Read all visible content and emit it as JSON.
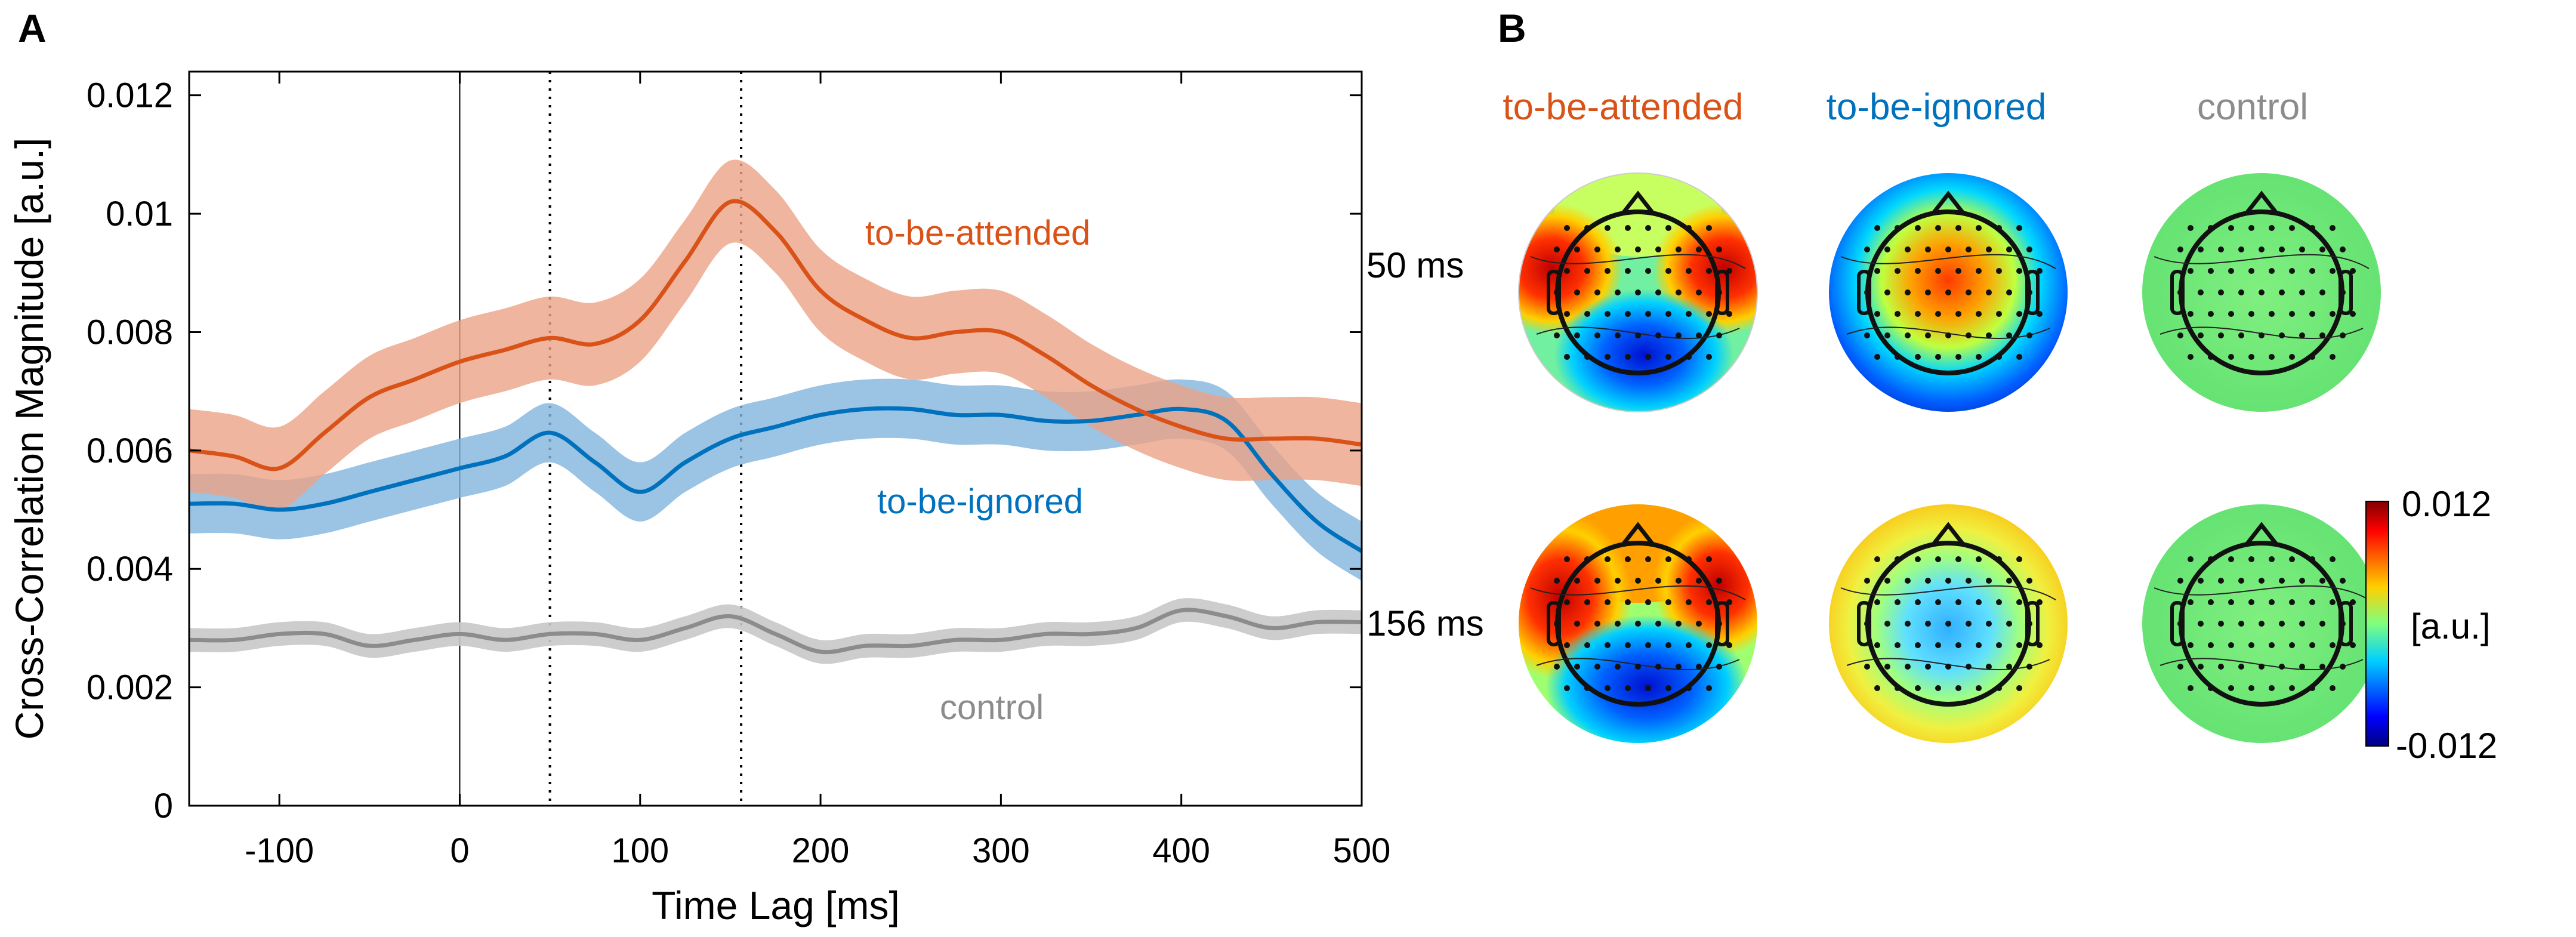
{
  "panel_a_label": "A",
  "panel_b_label": "B",
  "colors": {
    "attended": "#D95319",
    "attended_fill": "#EBA286",
    "ignored": "#0072BD",
    "ignored_fill": "#82B4DD",
    "control": "#8C8C8C",
    "control_fill": "#C8C8C8"
  },
  "chart_data": {
    "type": "line",
    "title": "",
    "xlabel": "Time Lag [ms]",
    "ylabel": "Cross-Correlation Magnitude [a.u.]",
    "xlim": [
      -150,
      500
    ],
    "ylim": [
      0,
      0.0124
    ],
    "xticks": [
      -100,
      0,
      100,
      200,
      300,
      400,
      500
    ],
    "xtick_labels": [
      "-100",
      "0",
      "100",
      "200",
      "300",
      "400",
      "500"
    ],
    "yticks": [
      0,
      0.002,
      0.004,
      0.006,
      0.008,
      0.01,
      0.012
    ],
    "ytick_labels": [
      "0",
      "0.002",
      "0.004",
      "0.006",
      "0.008",
      "0.01",
      "0.012"
    ],
    "vlines": [
      {
        "x": 0,
        "style": "solid"
      },
      {
        "x": 50,
        "style": "dotted"
      },
      {
        "x": 156,
        "style": "dotted"
      }
    ],
    "x": [
      -150,
      -125,
      -100,
      -75,
      -50,
      -25,
      0,
      25,
      50,
      75,
      100,
      125,
      150,
      175,
      200,
      225,
      250,
      275,
      300,
      325,
      350,
      375,
      400,
      425,
      450,
      475,
      500
    ],
    "series": [
      {
        "name": "to-be-attended",
        "label": "to-be-attended",
        "values": [
          0.006,
          0.0059,
          0.0057,
          0.0063,
          0.0069,
          0.0072,
          0.0075,
          0.0077,
          0.0079,
          0.0078,
          0.0082,
          0.0092,
          0.0102,
          0.0097,
          0.0087,
          0.0082,
          0.0079,
          0.008,
          0.008,
          0.0076,
          0.0071,
          0.0067,
          0.0064,
          0.0062,
          0.0062,
          0.0062,
          0.0061
        ],
        "error": 0.0007
      },
      {
        "name": "to-be-ignored",
        "label": "to-be-ignored",
        "values": [
          0.0051,
          0.0051,
          0.005,
          0.0051,
          0.0053,
          0.0055,
          0.0057,
          0.0059,
          0.0063,
          0.0058,
          0.0053,
          0.0058,
          0.0062,
          0.0064,
          0.0066,
          0.0067,
          0.0067,
          0.0066,
          0.0066,
          0.0065,
          0.0065,
          0.0066,
          0.0067,
          0.0065,
          0.0056,
          0.0048,
          0.0043
        ],
        "error": 0.0005
      },
      {
        "name": "control",
        "label": "control",
        "values": [
          0.0028,
          0.0028,
          0.0029,
          0.0029,
          0.0027,
          0.0028,
          0.0029,
          0.0028,
          0.0029,
          0.0029,
          0.0028,
          0.003,
          0.0032,
          0.0029,
          0.0026,
          0.0027,
          0.0027,
          0.0028,
          0.0028,
          0.0029,
          0.0029,
          0.003,
          0.0033,
          0.0032,
          0.003,
          0.0031,
          0.0031
        ],
        "error": 0.0002
      }
    ]
  },
  "topomaps": {
    "columns": [
      "to-be-attended",
      "to-be-ignored",
      "control"
    ],
    "rows": [
      "50 ms",
      "156 ms"
    ],
    "colorbar": {
      "max_label": "0.012",
      "unit_label": "[a.u.]",
      "min_label": "-0.012",
      "max": 0.012,
      "min": -0.012
    },
    "maps": [
      {
        "row": "50 ms",
        "column": "to-be-attended",
        "pattern": "red temporal left/right, blue posterior"
      },
      {
        "row": "50 ms",
        "column": "to-be-ignored",
        "pattern": "red frontal-central, blue periphery"
      },
      {
        "row": "50 ms",
        "column": "control",
        "pattern": "uniform green"
      },
      {
        "row": "156 ms",
        "column": "to-be-attended",
        "pattern": "red temporal left/right, blue posterior"
      },
      {
        "row": "156 ms",
        "column": "to-be-ignored",
        "pattern": "yellow periphery, light blue center"
      },
      {
        "row": "156 ms",
        "column": "control",
        "pattern": "uniform green"
      }
    ]
  }
}
